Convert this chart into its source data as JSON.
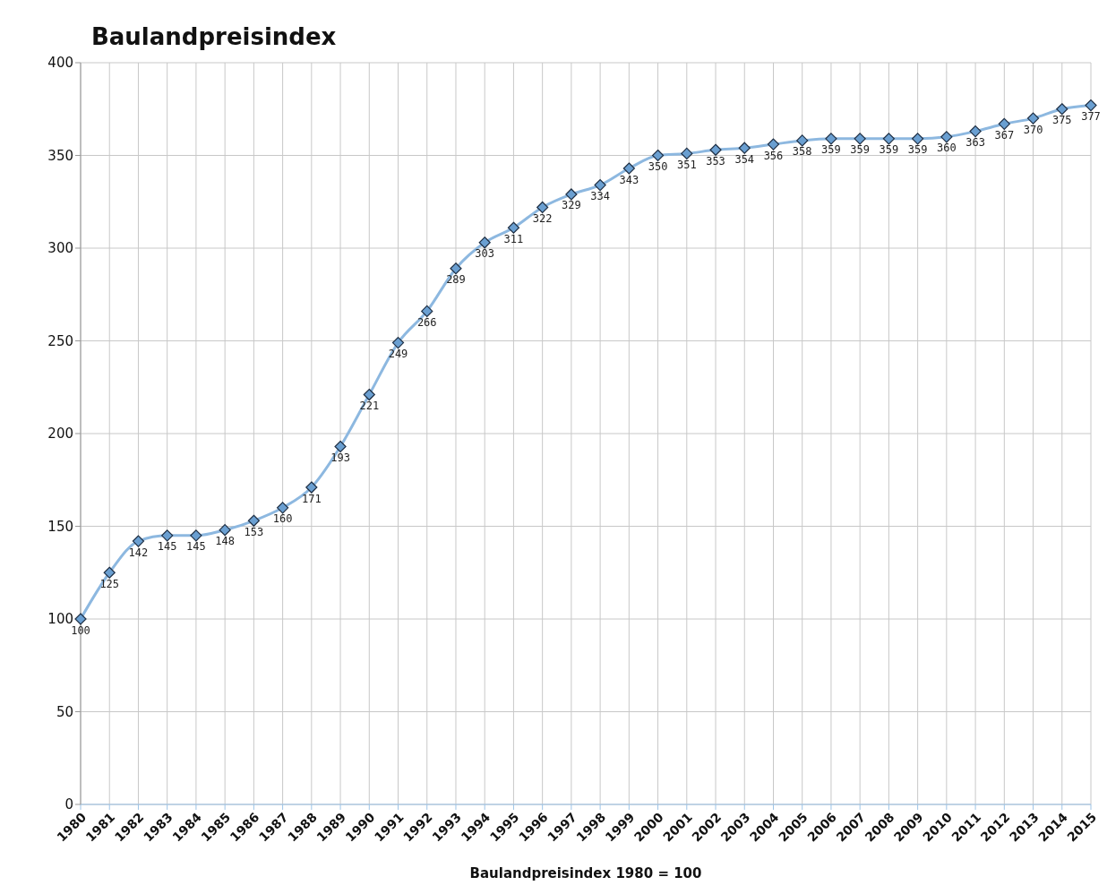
{
  "chart_data": {
    "type": "line",
    "title": "Baulandpreisindex",
    "xlabel": "Baulandpreisindex 1980 = 100",
    "categories": [
      "1980",
      "1981",
      "1982",
      "1983",
      "1984",
      "1985",
      "1986",
      "1987",
      "1988",
      "1989",
      "1990",
      "1991",
      "1992",
      "1993",
      "1994",
      "1995",
      "1996",
      "1997",
      "1998",
      "1999",
      "2000",
      "2001",
      "2002",
      "2003",
      "2004",
      "2005",
      "2006",
      "2007",
      "2008",
      "2009",
      "2010",
      "2011",
      "2012",
      "2013",
      "2014",
      "2015"
    ],
    "series": [
      {
        "color": "#8db8e0",
        "values": [
          100,
          125,
          142,
          145,
          145,
          148,
          153,
          160,
          171,
          193,
          221,
          249,
          266,
          289,
          303,
          311,
          322,
          329,
          334,
          343,
          350,
          351,
          353,
          354,
          356,
          358,
          359,
          359,
          359,
          359,
          360,
          363,
          367,
          370,
          375,
          377
        ]
      }
    ],
    "ylim": [
      0,
      400
    ],
    "yticks": [
      0,
      50,
      100,
      150,
      200,
      250,
      300,
      350,
      400
    ],
    "grid": true,
    "marker": "diamond",
    "line_style": "solid",
    "data_labels": true
  }
}
